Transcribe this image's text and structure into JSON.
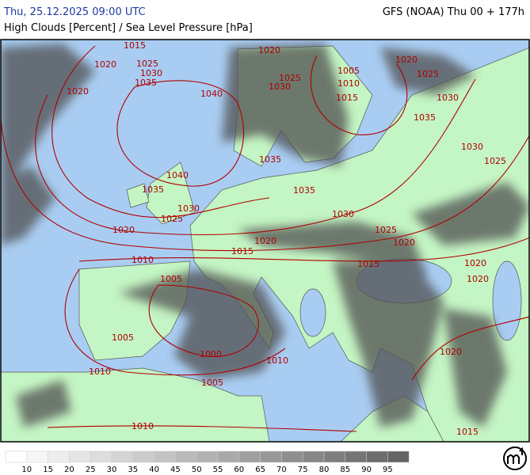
{
  "header": {
    "datetime": "Thu, 25.12.2025 09:00 UTC",
    "model": "GFS (NOAA) Thu 00 + 177h",
    "subtitle": "High Clouds [Percent] / Sea Level Pressure [hPa]"
  },
  "isobar_labels": [
    1015,
    1020,
    1025,
    1030,
    1035,
    1020,
    1040,
    1020,
    1025,
    1030,
    1005,
    1010,
    1015,
    1020,
    1025,
    1030,
    1035,
    1030,
    1025,
    1035,
    1040,
    1035,
    1035,
    1030,
    1025,
    1030,
    1025,
    1020,
    1020,
    1015,
    1020,
    1015,
    1020,
    1020,
    1010,
    1005,
    1005,
    1000,
    1010,
    1020,
    1010,
    1005,
    1010,
    1015
  ],
  "legend": {
    "labels": [
      10,
      15,
      20,
      25,
      30,
      35,
      40,
      45,
      50,
      55,
      60,
      65,
      70,
      75,
      80,
      85,
      90,
      95
    ]
  }
}
